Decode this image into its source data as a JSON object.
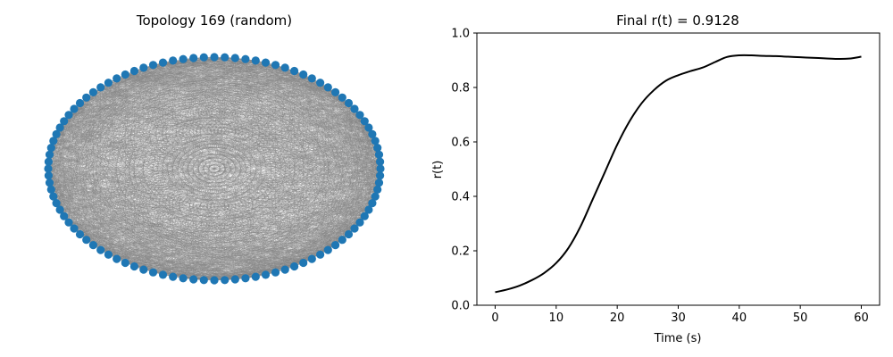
{
  "colors": {
    "node": "#1f77b4",
    "edge": "#808080",
    "line": "#000000"
  },
  "chart_data": [
    {
      "type": "network",
      "title": "Topology 169 (random)",
      "layout": "circular",
      "node_count": 100,
      "dense_edges": true
    },
    {
      "type": "line",
      "title": "Final r(t) = 0.9128",
      "xlabel": "Time (s)",
      "ylabel": "r(t)",
      "xlim": [
        -3,
        63
      ],
      "ylim": [
        0.0,
        1.0
      ],
      "xticks": [
        0,
        10,
        20,
        30,
        40,
        50,
        60
      ],
      "yticks": [
        0.0,
        0.2,
        0.4,
        0.6,
        0.8,
        1.0
      ],
      "xtick_labels": [
        "0",
        "10",
        "20",
        "30",
        "40",
        "50",
        "60"
      ],
      "ytick_labels": [
        "0.0",
        "0.2",
        "0.4",
        "0.6",
        "0.8",
        "1.0"
      ],
      "grid": false,
      "series": [
        {
          "x": [
            0,
            2,
            4,
            6,
            8,
            10,
            12,
            14,
            16,
            18,
            20,
            22,
            24,
            26,
            28,
            30,
            32,
            34,
            36,
            38,
            40,
            42,
            44,
            46,
            48,
            50,
            52,
            54,
            56,
            58,
            60
          ],
          "y": [
            0.048,
            0.058,
            0.072,
            0.092,
            0.118,
            0.155,
            0.21,
            0.29,
            0.39,
            0.49,
            0.59,
            0.675,
            0.742,
            0.79,
            0.825,
            0.845,
            0.86,
            0.873,
            0.893,
            0.912,
            0.918,
            0.918,
            0.916,
            0.915,
            0.913,
            0.911,
            0.909,
            0.907,
            0.905,
            0.906,
            0.913
          ]
        }
      ]
    }
  ]
}
